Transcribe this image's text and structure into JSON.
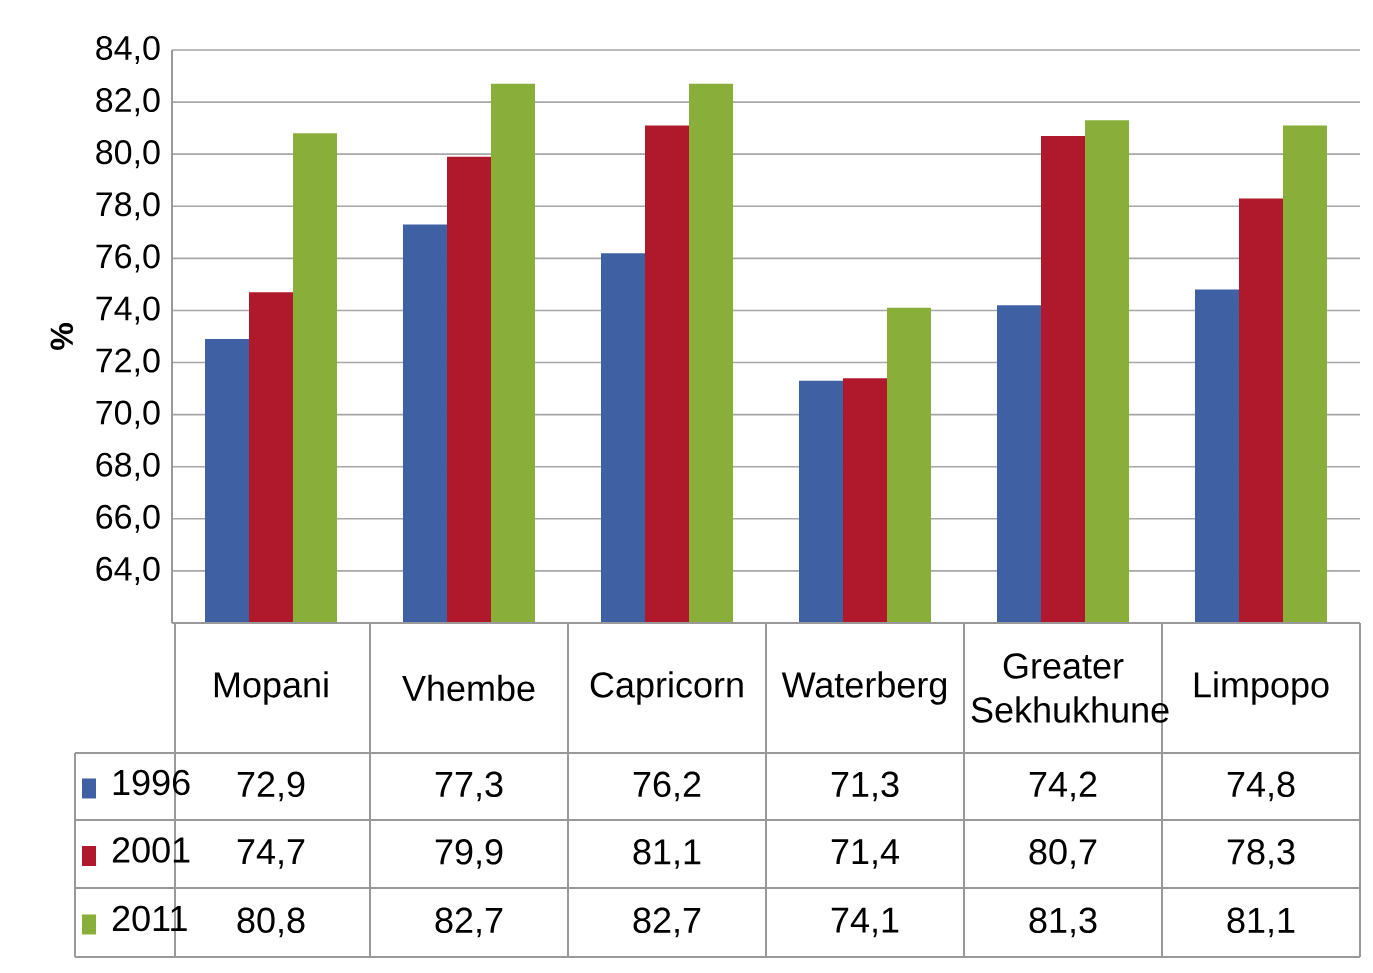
{
  "chart_data": {
    "type": "bar",
    "ylabel": "%",
    "categories": [
      "Mopani",
      "Vhembe",
      "Capricorn",
      "Waterberg",
      "Greater Sekhukhune",
      "Limpopo"
    ],
    "series": [
      {
        "name": "1996",
        "color": "#3f60a3",
        "values": [
          72.9,
          77.3,
          76.2,
          71.3,
          74.2,
          74.8
        ],
        "value_labels": [
          "72,9",
          "77,3",
          "76,2",
          "71,3",
          "74,2",
          "74,8"
        ]
      },
      {
        "name": "2001",
        "color": "#b0182b",
        "values": [
          74.7,
          79.9,
          81.1,
          71.4,
          80.7,
          78.3
        ],
        "value_labels": [
          "74,7",
          "79,9",
          "81,1",
          "71,4",
          "80,7",
          "78,3"
        ]
      },
      {
        "name": "2011",
        "color": "#8aae3a",
        "values": [
          80.8,
          82.7,
          82.7,
          74.1,
          81.3,
          81.1
        ],
        "value_labels": [
          "80,8",
          "82,7",
          "82,7",
          "74,1",
          "81,3",
          "81,1"
        ]
      }
    ],
    "ylim": [
      62,
      84
    ],
    "yticks": [
      {
        "value": 64,
        "label": "64,0"
      },
      {
        "value": 66,
        "label": "66,0"
      },
      {
        "value": 68,
        "label": "68,0"
      },
      {
        "value": 70,
        "label": "70,0"
      },
      {
        "value": 72,
        "label": "72,0"
      },
      {
        "value": 74,
        "label": "74,0"
      },
      {
        "value": 76,
        "label": "76,0"
      },
      {
        "value": 78,
        "label": "78,0"
      },
      {
        "value": 80,
        "label": "80,0"
      },
      {
        "value": 82,
        "label": "82,0"
      },
      {
        "value": 84,
        "label": "84,0"
      }
    ],
    "grid": "y",
    "legend": "bottom left"
  }
}
